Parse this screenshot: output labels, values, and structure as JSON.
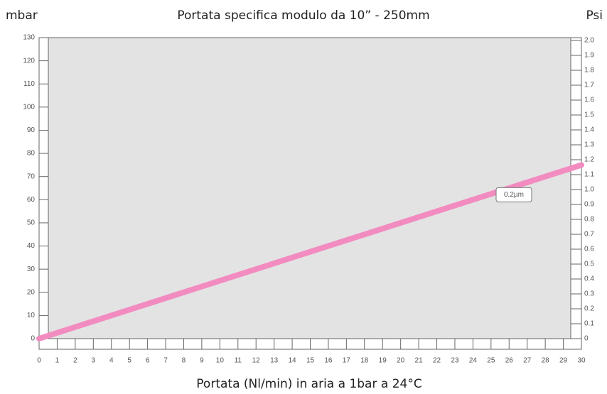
{
  "chart_data": {
    "type": "line",
    "title": "Portata specifica modulo da 10” - 250mm",
    "x_label": "Portata (Nl/min) in aria a 1bar a 24°C",
    "y_label": "mbar",
    "y2_label": "Psi",
    "x": [
      0,
      30
    ],
    "series": [
      {
        "name": "0,2µm",
        "color": "#f28cc0",
        "values": [
          0,
          75
        ]
      }
    ],
    "xlim": [
      0,
      30
    ],
    "xticks": [
      0,
      1,
      2,
      3,
      4,
      5,
      6,
      7,
      8,
      9,
      10,
      11,
      12,
      13,
      14,
      15,
      16,
      17,
      18,
      19,
      20,
      21,
      22,
      23,
      24,
      25,
      26,
      27,
      28,
      29,
      30
    ],
    "ylim": [
      0,
      130
    ],
    "yticks": [
      0,
      10,
      20,
      30,
      40,
      50,
      60,
      70,
      80,
      90,
      100,
      110,
      120,
      130
    ],
    "y2lim": [
      0,
      2
    ],
    "y2ticks": [
      0,
      0.1,
      0.2,
      0.3,
      0.4,
      0.5,
      0.6,
      0.7,
      0.8,
      0.9,
      {
        "value": 1,
        "label": "1.0"
      },
      1.1,
      1.2,
      1.3,
      1.4,
      1.5,
      1.6,
      1.7,
      1.8,
      1.9,
      {
        "value": 2,
        "label": "2.0"
      }
    ],
    "grid": false
  }
}
